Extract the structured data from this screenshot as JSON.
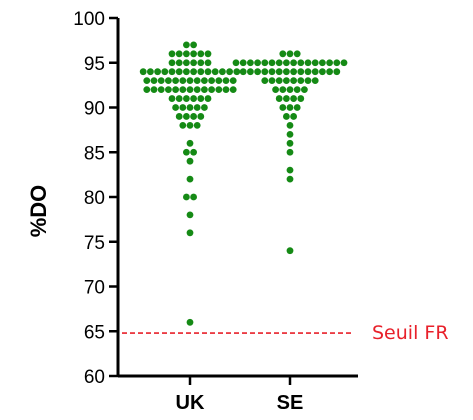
{
  "chart_data": {
    "type": "scatter",
    "ylabel": "%DO",
    "xlabel": "",
    "ylim": [
      60,
      100
    ],
    "yticks": [
      60,
      65,
      70,
      75,
      80,
      85,
      90,
      95,
      100
    ],
    "categories": [
      "UK",
      "SE"
    ],
    "series_color": "#158a15",
    "reference_line": {
      "value": 64.8,
      "label": "Seuil FR",
      "color": "#e8202a",
      "style": "dashed"
    },
    "points": [
      {
        "category": "UK",
        "values": [
          97,
          97,
          96,
          96,
          96,
          96,
          96,
          96,
          95,
          95,
          95,
          95,
          95,
          95,
          94,
          94,
          94,
          94,
          94,
          94,
          94,
          94,
          94,
          94,
          94,
          94,
          94,
          94,
          93,
          93,
          93,
          93,
          93,
          93,
          93,
          93,
          93,
          93,
          93,
          93,
          93,
          92,
          92,
          92,
          92,
          92,
          92,
          92,
          92,
          92,
          92,
          92,
          92,
          92,
          91,
          91,
          91,
          91,
          91,
          91,
          90,
          90,
          90,
          90,
          90,
          89,
          89,
          89,
          89,
          88,
          88,
          88,
          86,
          85,
          85,
          84,
          82,
          80,
          80,
          78,
          76,
          66
        ]
      },
      {
        "category": "SE",
        "values": [
          96,
          96,
          96,
          95,
          95,
          95,
          95,
          95,
          95,
          95,
          95,
          95,
          95,
          95,
          95,
          95,
          95,
          95,
          95,
          94,
          94,
          94,
          94,
          94,
          94,
          94,
          94,
          94,
          94,
          94,
          94,
          94,
          94,
          93,
          93,
          93,
          93,
          93,
          93,
          93,
          93,
          92,
          92,
          92,
          92,
          92,
          91,
          91,
          91,
          91,
          90,
          90,
          90,
          89,
          89,
          88,
          87,
          86,
          85,
          83,
          82,
          74
        ]
      }
    ]
  }
}
